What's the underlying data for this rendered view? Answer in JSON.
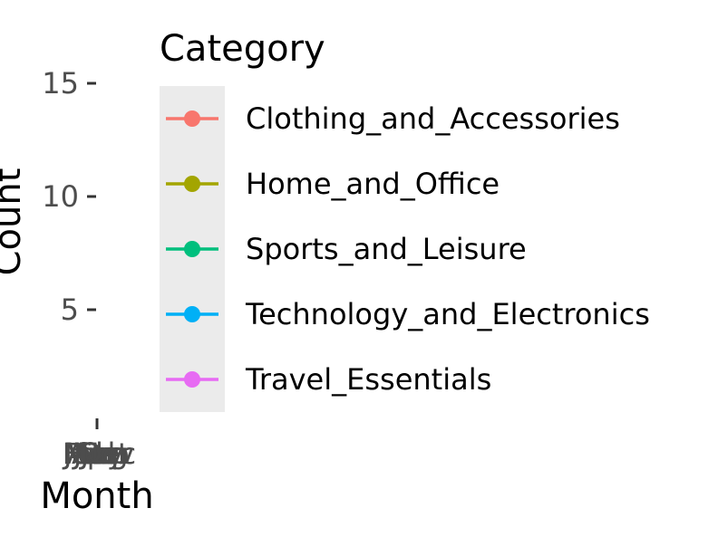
{
  "chart_data": {
    "type": "line",
    "xlabel": "Month",
    "ylabel": "Count",
    "x_tick_labels": [
      "Jan",
      "Feb",
      "Mar",
      "Apr",
      "May",
      "Jun",
      "Jul",
      "Aug",
      "Sep",
      "Oct",
      "Nov",
      "Dec"
    ],
    "y_ticks": [
      5,
      10,
      15
    ],
    "ylim": [
      0,
      15
    ],
    "grid": false,
    "legend_title": "Category",
    "legend_position": "right",
    "series": [
      {
        "name": "Clothing_and_Accessories",
        "color": "#F8766D"
      },
      {
        "name": "Home_and_Office",
        "color": "#A3A500"
      },
      {
        "name": "Sports_and_Leisure",
        "color": "#00BF7D"
      },
      {
        "name": "Technology_and_Electronics",
        "color": "#00B0F6"
      },
      {
        "name": "Travel_Essentials",
        "color": "#E76BF3"
      }
    ]
  }
}
